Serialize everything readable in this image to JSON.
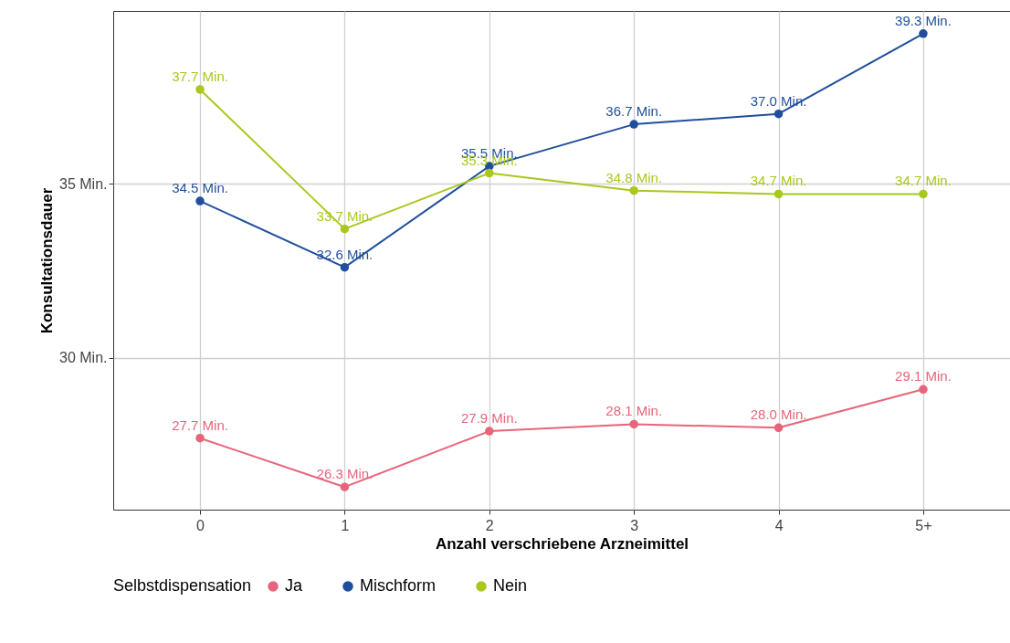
{
  "chart_data": {
    "type": "line",
    "xlabel": "Anzahl verschriebene Arzneimittel",
    "ylabel": "Konsultationsdauer",
    "legend_title": "Selbstdispensation",
    "categories": [
      "0",
      "1",
      "2",
      "3",
      "4",
      "5+"
    ],
    "series": [
      {
        "name": "Ja",
        "color": "#e8647a",
        "values": [
          27.7,
          26.3,
          27.9,
          28.1,
          28.0,
          29.1
        ],
        "value_labels": [
          "27.7 Min.",
          "26.3 Min.",
          "27.9 Min.",
          "28.1 Min.",
          "28.0 Min.",
          "29.1 Min."
        ]
      },
      {
        "name": "Mischform",
        "color": "#1f4e9c",
        "values": [
          34.5,
          32.6,
          35.5,
          36.7,
          37.0,
          39.3
        ],
        "value_labels": [
          "34.5 Min.",
          "32.6 Min.",
          "35.5 Min.",
          "36.7 Min.",
          "37.0 Min.",
          "39.3 Min."
        ]
      },
      {
        "name": "Nein",
        "color": "#a8c81c",
        "values": [
          37.7,
          33.7,
          35.3,
          34.8,
          34.7,
          34.7
        ],
        "value_labels": [
          "37.7 Min.",
          "33.7 Min.",
          "35.3 Min.",
          "34.8 Min.",
          "34.7 Min.",
          "34.7 Min."
        ]
      }
    ],
    "ylim": [
      25.65,
      39.95
    ],
    "yticks": [
      {
        "value": 30,
        "label": "30 Min."
      },
      {
        "value": 35,
        "label": "35 Min."
      }
    ],
    "grid": true,
    "legend": "bottom",
    "marker": "circle",
    "line_style": "solid"
  }
}
